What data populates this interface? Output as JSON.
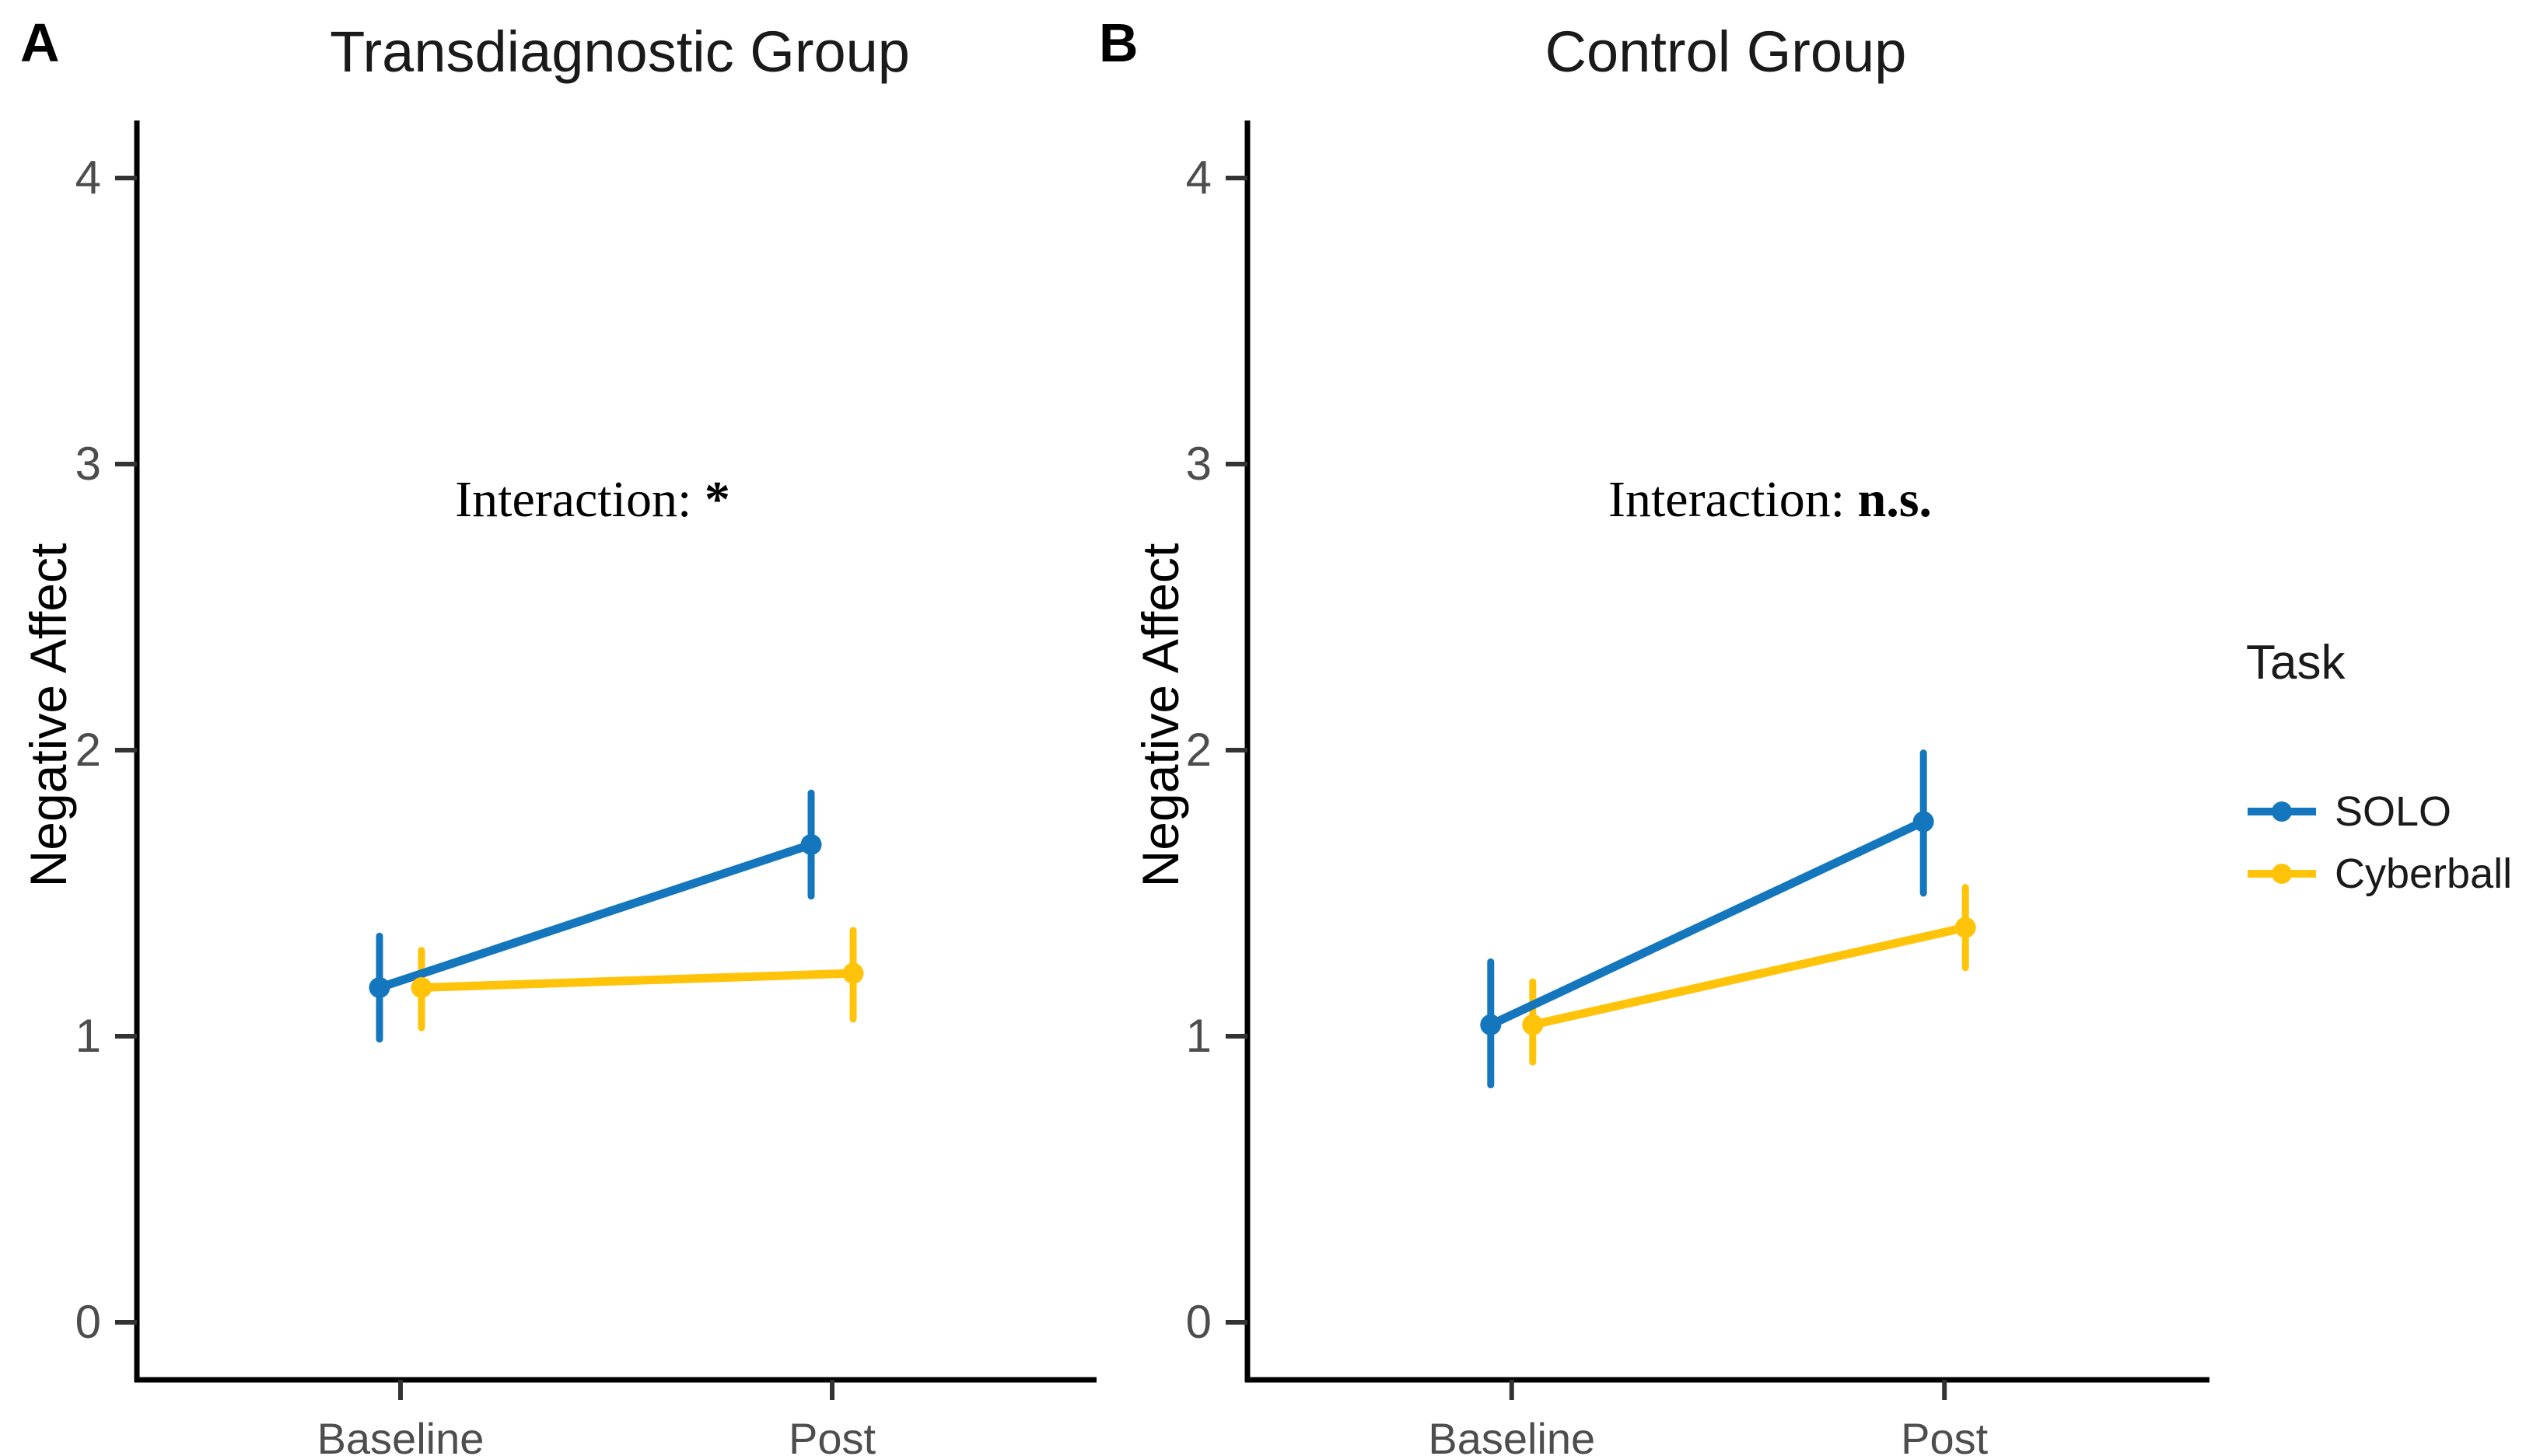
{
  "figure": {
    "panels": [
      {
        "label": "A",
        "title": "Transdiagnostic Group",
        "ylabel": "Negative Affect",
        "annotation": {
          "prefix": "Interaction:",
          "value": "*"
        }
      },
      {
        "label": "B",
        "title": "Control Group",
        "ylabel": "Negative Affect",
        "annotation": {
          "prefix": "Interaction:",
          "value": "n.s."
        }
      }
    ],
    "legend": {
      "title": "Task",
      "entries": [
        {
          "label": "SOLO",
          "color": "#1477BE"
        },
        {
          "label": "Cyberball",
          "color": "#FFC30A"
        }
      ]
    },
    "colors": {
      "axis": "#000000",
      "tick_text": "#4d4d4d",
      "solo": "#1477BE",
      "cyberball": "#FFC30A"
    }
  },
  "chart_data": [
    {
      "type": "line",
      "title": "Transdiagnostic Group",
      "panel_label": "A",
      "xlabel": "",
      "ylabel": "Negative Affect",
      "categories": [
        "Baseline",
        "Post"
      ],
      "yticks": [
        0,
        1,
        2,
        3,
        4
      ],
      "ylim": [
        -0.2,
        4.2
      ],
      "grid": false,
      "legend_position": "right-outside",
      "annotation": "Interaction: *",
      "series": [
        {
          "name": "SOLO",
          "color": "#1477BE",
          "values": [
            1.17,
            1.67
          ],
          "ci_low": [
            0.99,
            1.49
          ],
          "ci_high": [
            1.35,
            1.85
          ]
        },
        {
          "name": "Cyberball",
          "color": "#FFC30A",
          "values": [
            1.17,
            1.22
          ],
          "ci_low": [
            1.03,
            1.06
          ],
          "ci_high": [
            1.3,
            1.37
          ]
        }
      ]
    },
    {
      "type": "line",
      "title": "Control Group",
      "panel_label": "B",
      "xlabel": "",
      "ylabel": "Negative Affect",
      "categories": [
        "Baseline",
        "Post"
      ],
      "yticks": [
        0,
        1,
        2,
        3,
        4
      ],
      "ylim": [
        -0.2,
        4.2
      ],
      "grid": false,
      "legend_position": "right-outside",
      "annotation": "Interaction: n.s.",
      "series": [
        {
          "name": "SOLO",
          "color": "#1477BE",
          "values": [
            1.04,
            1.75
          ],
          "ci_low": [
            0.83,
            1.5
          ],
          "ci_high": [
            1.26,
            1.99
          ]
        },
        {
          "name": "Cyberball",
          "color": "#FFC30A",
          "values": [
            1.04,
            1.38
          ],
          "ci_low": [
            0.91,
            1.24
          ],
          "ci_high": [
            1.19,
            1.52
          ]
        }
      ]
    }
  ]
}
